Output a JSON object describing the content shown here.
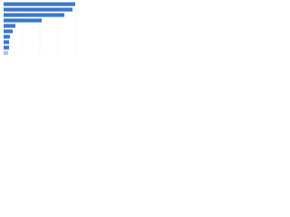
{
  "chart_data": {
    "type": "bar",
    "orientation": "horizontal",
    "categories": [
      null,
      null,
      null,
      null,
      null,
      null,
      null,
      null,
      null,
      null
    ],
    "values": [
      79,
      76,
      67,
      42,
      13,
      10,
      7,
      6,
      6,
      5
    ],
    "colors": [
      "#3a78c9",
      "#3a78c9",
      "#3a78c9",
      "#3a78c9",
      "#3a78c9",
      "#3a78c9",
      "#3a78c9",
      "#3a78c9",
      "#3a78c9",
      "#a9c4e8"
    ],
    "xlim": [
      0,
      85
    ],
    "xticks": [
      0,
      20,
      40,
      60,
      80
    ],
    "grid": true
  }
}
